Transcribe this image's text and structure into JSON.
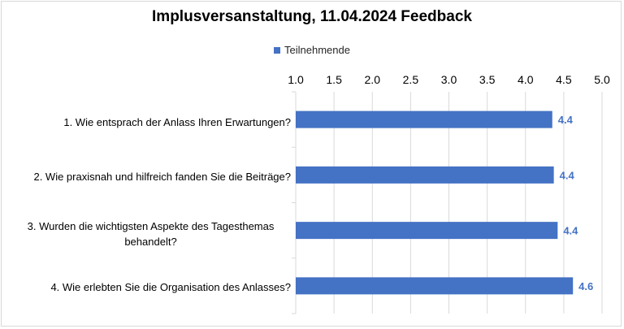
{
  "chart_data": {
    "type": "bar",
    "orientation": "horizontal",
    "title": "Implusversanstaltung, 11.04.2024 Feedback",
    "legend": [
      "Teilnehmende"
    ],
    "legend_position": "top",
    "categories": [
      "1. Wie entsprach der Anlass Ihren Erwartungen?",
      "2. Wie praxisnah und hilfreich fanden Sie die Beiträge?",
      "3. Wurden die wichtigsten Aspekte des Tagesthemas behandelt?",
      "4. Wie erlebten Sie die Organisation des Anlasses?"
    ],
    "series": [
      {
        "name": "Teilnehmende",
        "values": [
          4.35,
          4.37,
          4.42,
          4.62
        ],
        "data_labels": [
          "4.4",
          "4.4",
          "4.4",
          "4.6"
        ]
      }
    ],
    "xlim": [
      1.0,
      5.0
    ],
    "ticks": [
      "1.0",
      "1.5",
      "2.0",
      "2.5",
      "3.0",
      "3.5",
      "4.0",
      "4.5",
      "5.0"
    ],
    "x_axis_position": "top",
    "grid": true,
    "colors": {
      "bar": "#4472c4",
      "grid": "#d9d9d9",
      "label": "#4472c4"
    }
  }
}
